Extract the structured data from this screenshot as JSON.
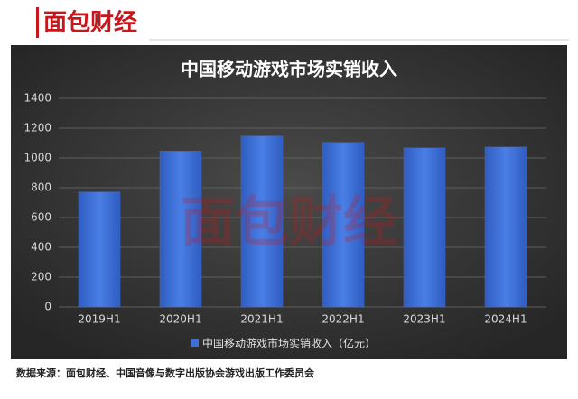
{
  "logo": "面包财经",
  "source": "数据来源：面包财经、中国音像与数字出版协会游戏出版工作委员会",
  "chart_data": {
    "type": "bar",
    "title": "中国移动游戏市场实销收入",
    "categories": [
      "2019H1",
      "2020H1",
      "2021H1",
      "2022H1",
      "2023H1",
      "2024H1"
    ],
    "series": [
      {
        "name": "中国移动游戏市场实销收入（亿元）",
        "color": "#3d6fd6",
        "values": [
          771,
          1046,
          1147,
          1104,
          1067,
          1073
        ]
      }
    ],
    "ylim": [
      0,
      1400
    ],
    "yticks": [
      0,
      200,
      400,
      600,
      800,
      1000,
      1200,
      1400
    ],
    "grid": true
  }
}
